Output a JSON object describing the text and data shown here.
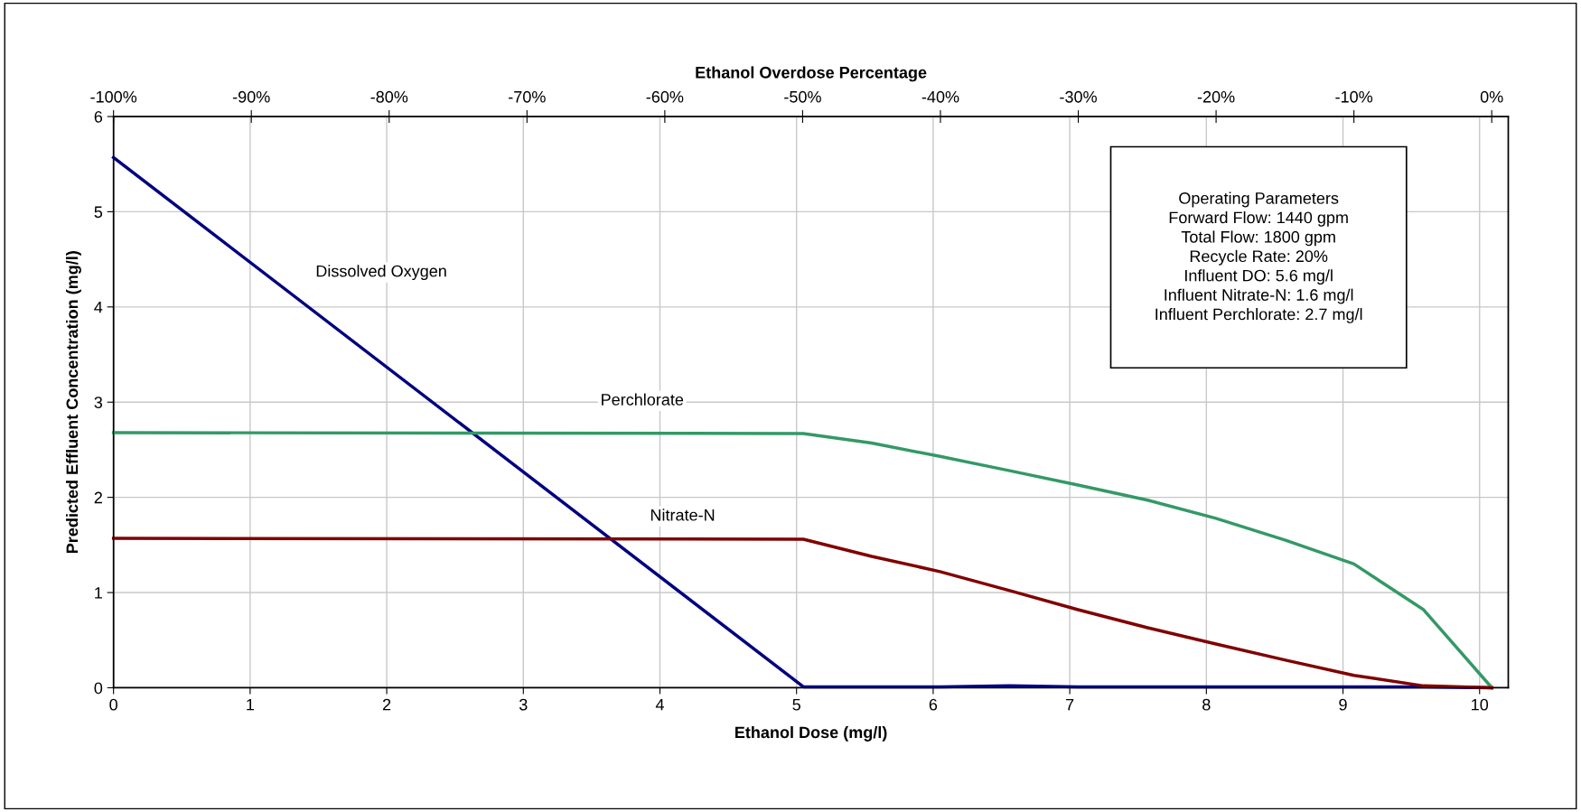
{
  "chart_data": {
    "type": "line",
    "xlabel": "Ethanol Dose (mg/l)",
    "ylabel": "Predicted Effluent Concentration (mg/l)",
    "x2label": "Ethanol Overdose Percentage",
    "x": [
      0,
      5.05,
      5.55,
      6.05,
      6.56,
      7.06,
      7.57,
      8.07,
      8.58,
      9.08,
      9.59,
      10.09
    ],
    "series": [
      {
        "name": "Dissolved Oxygen",
        "color": "#000080",
        "values": [
          5.57,
          0.01,
          0.01,
          0.01,
          0.02,
          0.01,
          0.01,
          0.01,
          0.01,
          0.01,
          0.01,
          0.0
        ]
      },
      {
        "name": "Perchlorate",
        "color": "#339966",
        "values": [
          2.68,
          2.67,
          2.57,
          2.43,
          2.28,
          2.13,
          1.97,
          1.78,
          1.55,
          1.3,
          0.82,
          0.0
        ]
      },
      {
        "name": "Nitrate-N",
        "color": "#800000",
        "values": [
          1.57,
          1.56,
          1.38,
          1.22,
          1.02,
          0.82,
          0.63,
          0.46,
          0.29,
          0.13,
          0.02,
          0.0
        ]
      }
    ],
    "xlim": [
      0,
      10.21
    ],
    "xticks": [
      0,
      1,
      2,
      3,
      4,
      5,
      6,
      7,
      8,
      9,
      10
    ],
    "ylim": [
      0,
      6
    ],
    "yticks": [
      0,
      1,
      2,
      3,
      4,
      5,
      6
    ],
    "x2lim": [
      -100,
      1.2
    ],
    "x2ticks": [
      {
        "value": -100,
        "label": "-100%"
      },
      {
        "value": -90,
        "label": "-90%"
      },
      {
        "value": -80,
        "label": "-80%"
      },
      {
        "value": -70,
        "label": "-70%"
      },
      {
        "value": -60,
        "label": "-60%"
      },
      {
        "value": -50,
        "label": "-50%"
      },
      {
        "value": -40,
        "label": "-40%"
      },
      {
        "value": -30,
        "label": "-30%"
      },
      {
        "value": -20,
        "label": "-20%"
      },
      {
        "value": -10,
        "label": "-10%"
      },
      {
        "value": 0,
        "label": "0%"
      }
    ],
    "annotations": [
      "Operating Parameters\nForward Flow: 1440 gpm\nTotal Flow: 1800 gpm\nRecycle Rate: 20%\nInfluent DO: 5.6 mg/l\nInfluent Nitrate-N: 1.6 mg/l\nInfluent Perchlorate: 2.7 mg/l"
    ],
    "grid": true,
    "legend": false,
    "marker": "none",
    "line_style": "solid"
  }
}
